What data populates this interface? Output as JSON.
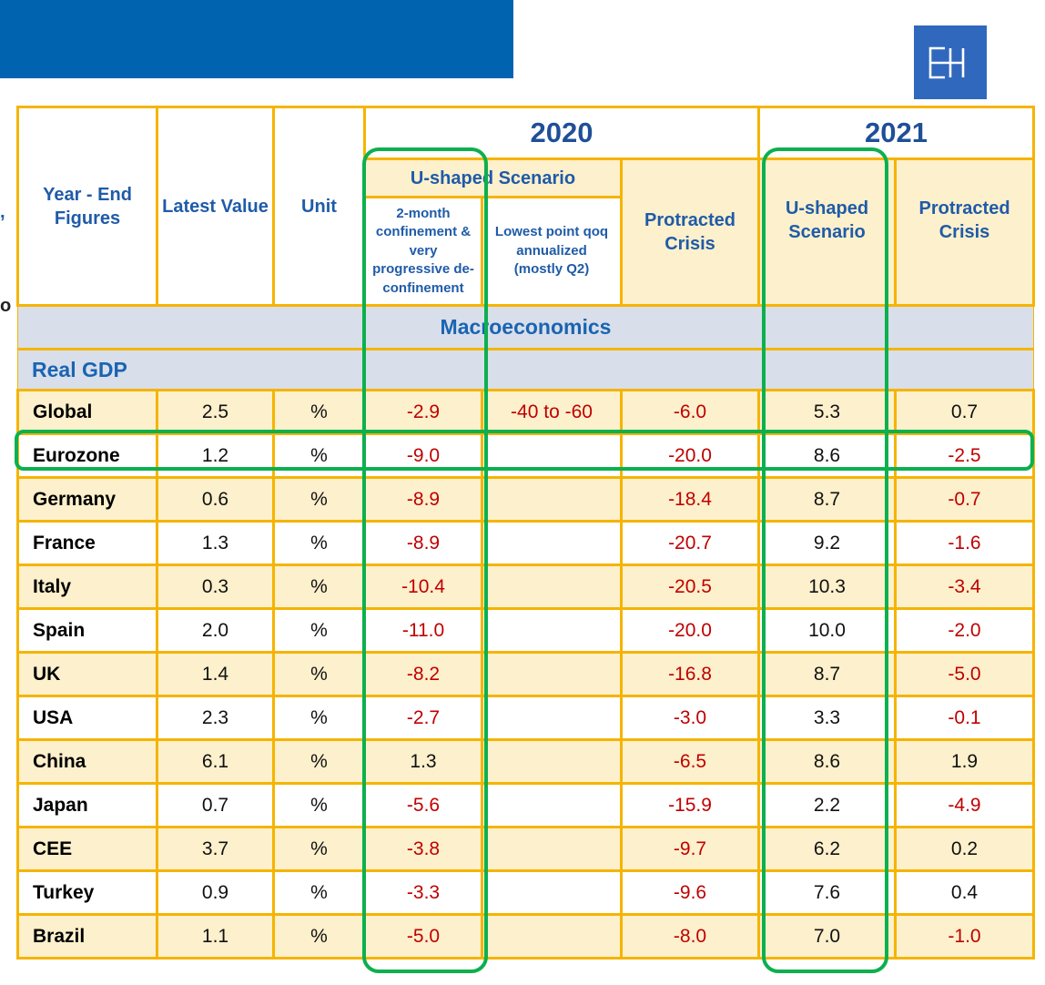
{
  "logo": {
    "text": "EH",
    "icon": "eh-logo-icon"
  },
  "edge_fragments": [
    ",",
    "o"
  ],
  "header": {
    "row_label": "Year - End Figures",
    "latest_value": "Latest Value",
    "unit": "Unit",
    "year_2020": "2020",
    "year_2021": "2021",
    "u_shaped_2020": "U-shaped Scenario",
    "sub_two_month": "2-month confinement & very progressive de-confinement",
    "sub_lowest_point": "Lowest point qoq annualized (mostly Q2)",
    "protracted_2020": "Protracted Crisis",
    "u_shaped_2021": "U-shaped Scenario",
    "protracted_2021": "Protracted Crisis"
  },
  "section_title": "Macroeconomics",
  "subsection_title": "Real GDP",
  "colors": {
    "negative": "#c00000",
    "border": "#f5b400",
    "highlight": "#0cb04e",
    "header_text": "#1f5ba8"
  },
  "rows": [
    {
      "name": "Global",
      "latest": "2.5",
      "unit": "%",
      "u2020": "-2.9",
      "lowest": "-40 to -60",
      "pc2020": "-6.0",
      "u2021": "5.3",
      "pc2021": "0.7"
    },
    {
      "name": "Eurozone",
      "latest": "1.2",
      "unit": "%",
      "u2020": "-9.0",
      "lowest": "",
      "pc2020": "-20.0",
      "u2021": "8.6",
      "pc2021": "-2.5"
    },
    {
      "name": "Germany",
      "latest": "0.6",
      "unit": "%",
      "u2020": "-8.9",
      "lowest": "",
      "pc2020": "-18.4",
      "u2021": "8.7",
      "pc2021": "-0.7"
    },
    {
      "name": "France",
      "latest": "1.3",
      "unit": "%",
      "u2020": "-8.9",
      "lowest": "",
      "pc2020": "-20.7",
      "u2021": "9.2",
      "pc2021": "-1.6"
    },
    {
      "name": "Italy",
      "latest": "0.3",
      "unit": "%",
      "u2020": "-10.4",
      "lowest": "",
      "pc2020": "-20.5",
      "u2021": "10.3",
      "pc2021": "-3.4"
    },
    {
      "name": "Spain",
      "latest": "2.0",
      "unit": "%",
      "u2020": "-11.0",
      "lowest": "",
      "pc2020": "-20.0",
      "u2021": "10.0",
      "pc2021": "-2.0"
    },
    {
      "name": "UK",
      "latest": "1.4",
      "unit": "%",
      "u2020": "-8.2",
      "lowest": "",
      "pc2020": "-16.8",
      "u2021": "8.7",
      "pc2021": "-5.0"
    },
    {
      "name": "USA",
      "latest": "2.3",
      "unit": "%",
      "u2020": "-2.7",
      "lowest": "",
      "pc2020": "-3.0",
      "u2021": "3.3",
      "pc2021": "-0.1"
    },
    {
      "name": "China",
      "latest": "6.1",
      "unit": "%",
      "u2020": "1.3",
      "lowest": "",
      "pc2020": "-6.5",
      "u2021": "8.6",
      "pc2021": "1.9"
    },
    {
      "name": "Japan",
      "latest": "0.7",
      "unit": "%",
      "u2020": "-5.6",
      "lowest": "",
      "pc2020": "-15.9",
      "u2021": "2.2",
      "pc2021": "-4.9"
    },
    {
      "name": "CEE",
      "latest": "3.7",
      "unit": "%",
      "u2020": "-3.8",
      "lowest": "",
      "pc2020": "-9.7",
      "u2021": "6.2",
      "pc2021": "0.2"
    },
    {
      "name": "Turkey",
      "latest": "0.9",
      "unit": "%",
      "u2020": "-3.3",
      "lowest": "",
      "pc2020": "-9.6",
      "u2021": "7.6",
      "pc2021": "0.4"
    },
    {
      "name": "Brazil",
      "latest": "1.1",
      "unit": "%",
      "u2020": "-5.0",
      "lowest": "",
      "pc2020": "-8.0",
      "u2021": "7.0",
      "pc2021": "-1.0"
    }
  ],
  "highlights": [
    "2020 U-shaped Scenario column",
    "2021 U-shaped Scenario column",
    "Eurozone row"
  ]
}
